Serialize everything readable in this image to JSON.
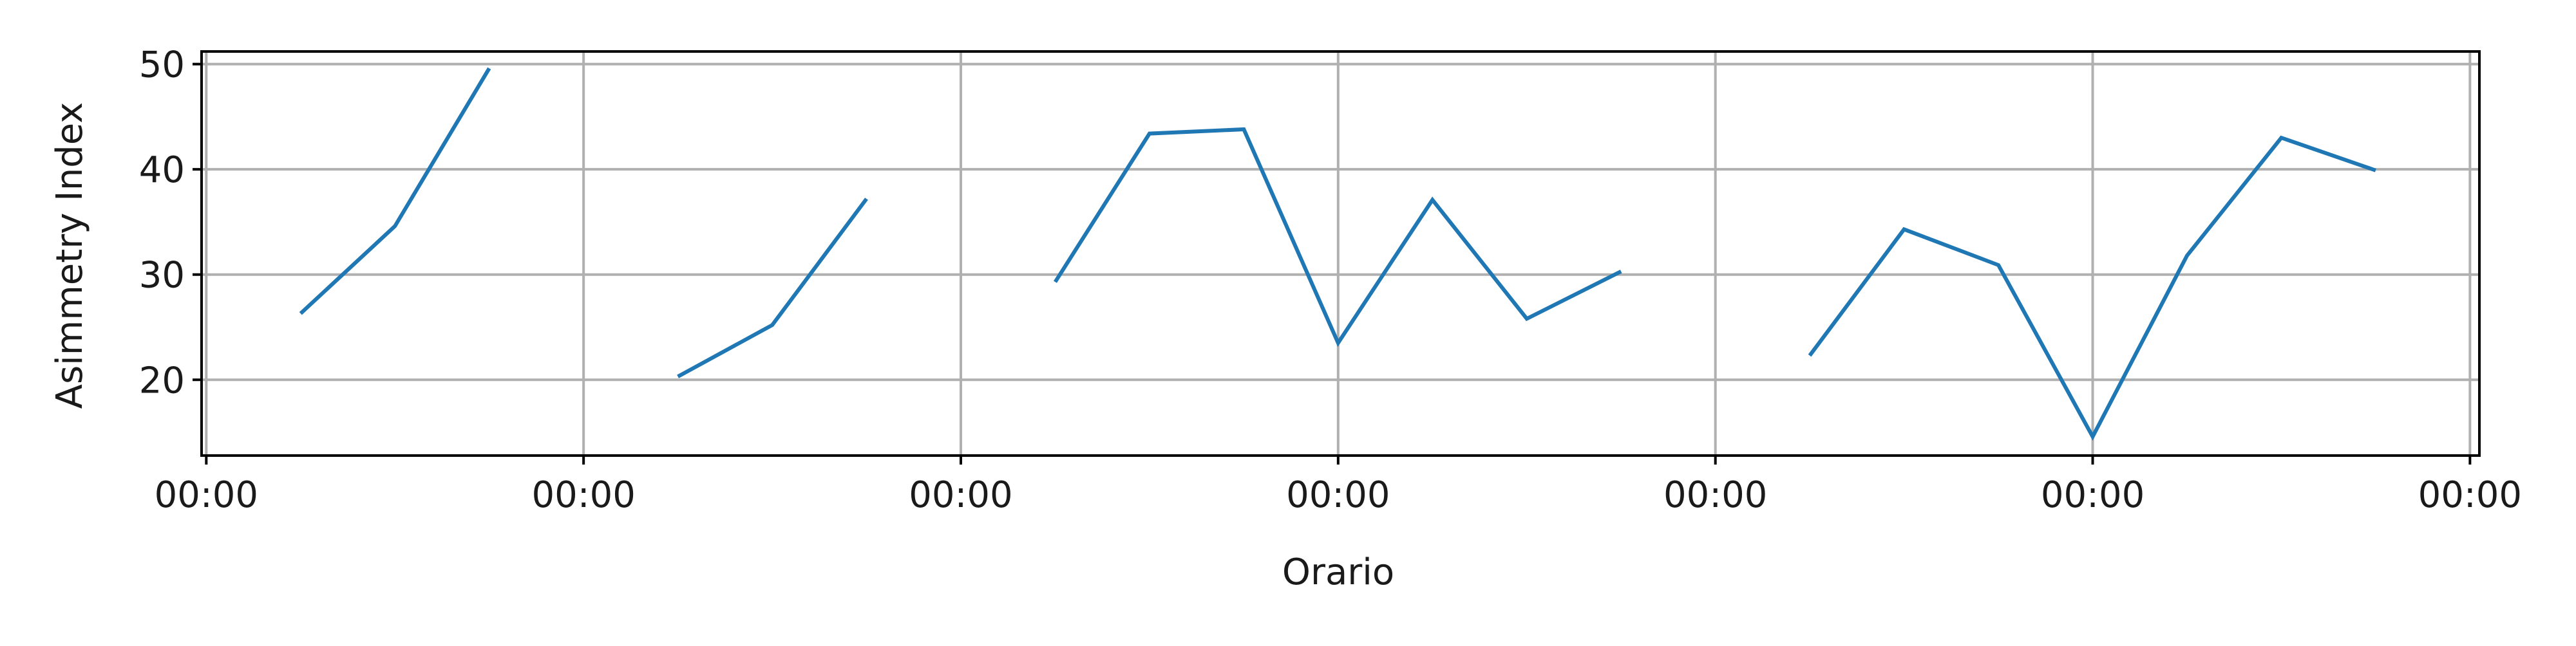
{
  "chart_data": {
    "type": "line",
    "xlabel": "Orario",
    "ylabel": "Asimmetry Index",
    "xlim": [
      -0.0125,
      6.025
    ],
    "ylim": [
      12.8,
      51.2
    ],
    "grid": true,
    "x_ticks": [
      0,
      1,
      2,
      3,
      4,
      5,
      6
    ],
    "x_tick_labels": [
      "00:00",
      "00:00",
      "00:00",
      "00:00",
      "00:00",
      "00:00",
      "00:00"
    ],
    "y_ticks": [
      20,
      30,
      40,
      50
    ],
    "y_tick_labels": [
      "20",
      "30",
      "40",
      "50"
    ],
    "color": "#1f77b4",
    "segments": [
      {
        "x": [
          0.25,
          0.5,
          0.75
        ],
        "values": [
          26.3,
          34.6,
          49.6
        ]
      },
      {
        "x": [
          1.25,
          1.5,
          1.75
        ],
        "values": [
          20.3,
          25.2,
          37.2
        ]
      },
      {
        "x": [
          2.25,
          2.5,
          2.75,
          3.0,
          3.25,
          3.5,
          3.75
        ],
        "values": [
          29.3,
          43.4,
          43.8,
          23.5,
          37.1,
          25.8,
          30.3
        ]
      },
      {
        "x": [
          4.25,
          4.5,
          4.75,
          5.0,
          5.25,
          5.5,
          5.75
        ],
        "values": [
          22.3,
          34.3,
          30.9,
          14.6,
          31.8,
          43.0,
          39.9
        ]
      }
    ]
  }
}
